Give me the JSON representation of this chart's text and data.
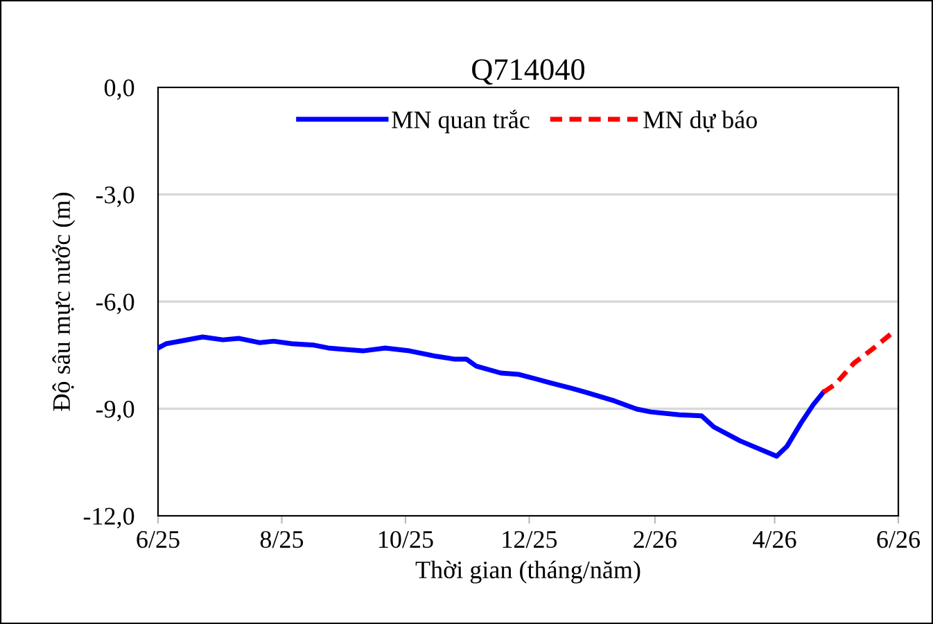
{
  "chart_data": {
    "type": "line",
    "title": "Q714040",
    "xlabel": "Thời gian (tháng/năm)",
    "ylabel": "Độ sâu mực nước (m)",
    "xlim": [
      "2025-06-01",
      "2026-06-01"
    ],
    "xticks": [
      {
        "value": "2025-06-01",
        "label": "6/25"
      },
      {
        "value": "2025-08-01",
        "label": "8/25"
      },
      {
        "value": "2025-10-01",
        "label": "10/25"
      },
      {
        "value": "2025-12-01",
        "label": "12/25"
      },
      {
        "value": "2026-02-01",
        "label": "2/26"
      },
      {
        "value": "2026-04-01",
        "label": "4/26"
      },
      {
        "value": "2026-06-01",
        "label": "6/26"
      }
    ],
    "ylim": [
      -12,
      0
    ],
    "yticks": [
      {
        "value": -12,
        "label": "-12,0"
      },
      {
        "value": -9,
        "label": "-9,0"
      },
      {
        "value": -6,
        "label": "-6,0"
      },
      {
        "value": -3,
        "label": "-3,0"
      },
      {
        "value": 0,
        "label": "0,0"
      }
    ],
    "grid": "y",
    "legend": "top",
    "series": [
      {
        "name": "MN quan trắc",
        "color": "#0000ff",
        "line_style": "solid",
        "x": [
          "2025-06-01",
          "2025-06-05",
          "2025-06-23",
          "2025-07-03",
          "2025-07-11",
          "2025-07-21",
          "2025-07-28",
          "2025-08-06",
          "2025-08-17",
          "2025-08-24",
          "2025-09-10",
          "2025-09-21",
          "2025-10-03",
          "2025-10-16",
          "2025-10-25",
          "2025-10-31",
          "2025-11-05",
          "2025-11-17",
          "2025-11-26",
          "2025-12-04",
          "2025-12-11",
          "2025-12-22",
          "2025-12-29",
          "2026-01-12",
          "2026-01-23",
          "2026-01-30",
          "2026-02-13",
          "2026-02-24",
          "2026-03-02",
          "2026-03-15",
          "2026-04-02",
          "2026-04-07",
          "2026-04-14",
          "2026-04-20",
          "2026-04-25"
        ],
        "values": [
          -7.3,
          -7.18,
          -6.99,
          -7.07,
          -7.03,
          -7.15,
          -7.11,
          -7.18,
          -7.22,
          -7.3,
          -7.38,
          -7.3,
          -7.38,
          -7.53,
          -7.61,
          -7.61,
          -7.81,
          -8.0,
          -8.04,
          -8.16,
          -8.27,
          -8.43,
          -8.54,
          -8.78,
          -9.01,
          -9.09,
          -9.17,
          -9.2,
          -9.51,
          -9.9,
          -10.33,
          -10.06,
          -9.4,
          -8.89,
          -8.54
        ]
      },
      {
        "name": "MN dự báo",
        "color": "#ff0000",
        "line_style": "dashed",
        "x": [
          "2026-04-25",
          "2026-05-01",
          "2026-05-10",
          "2026-05-19",
          "2026-05-30"
        ],
        "values": [
          -8.54,
          -8.31,
          -7.73,
          -7.34,
          -6.83
        ]
      }
    ]
  }
}
